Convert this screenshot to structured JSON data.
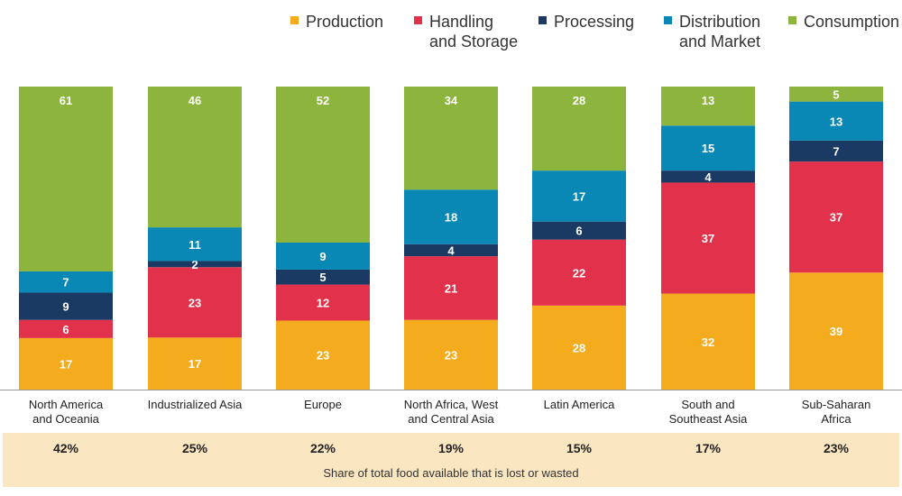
{
  "chart_data": {
    "type": "bar",
    "stacked": true,
    "normalized_percent": true,
    "categories": [
      "North America\nand Oceania",
      "Industrialized Asia",
      "Europe",
      "North Africa, West\nand Central Asia",
      "Latin America",
      "South and\nSoutheast Asia",
      "Sub-Saharan\nAfrica"
    ],
    "series": [
      {
        "name": "Production",
        "legend": "Production",
        "color": "#f5ab1e",
        "values": [
          17,
          17,
          23,
          23,
          28,
          32,
          39
        ]
      },
      {
        "name": "Handling and Storage",
        "legend": "Handling\nand Storage",
        "color": "#e2314a",
        "values": [
          6,
          23,
          12,
          21,
          22,
          37,
          37
        ]
      },
      {
        "name": "Processing",
        "legend": "Processing",
        "color": "#1b3a63",
        "values": [
          9,
          2,
          5,
          4,
          6,
          4,
          7
        ]
      },
      {
        "name": "Distribution and Market",
        "legend": "Distribution\nand Market",
        "color": "#0a88b5",
        "values": [
          7,
          11,
          9,
          18,
          17,
          15,
          13
        ]
      },
      {
        "name": "Consumption",
        "legend": "Consumption",
        "color": "#8db43c",
        "values": [
          61,
          46,
          52,
          34,
          28,
          13,
          5
        ]
      }
    ],
    "share_lost": [
      "42%",
      "25%",
      "22%",
      "19%",
      "15%",
      "17%",
      "23%"
    ],
    "share_caption": "Share of total food available that is lost or wasted",
    "title": "",
    "xlabel": "",
    "ylabel": "",
    "legend_position": "top-right"
  }
}
